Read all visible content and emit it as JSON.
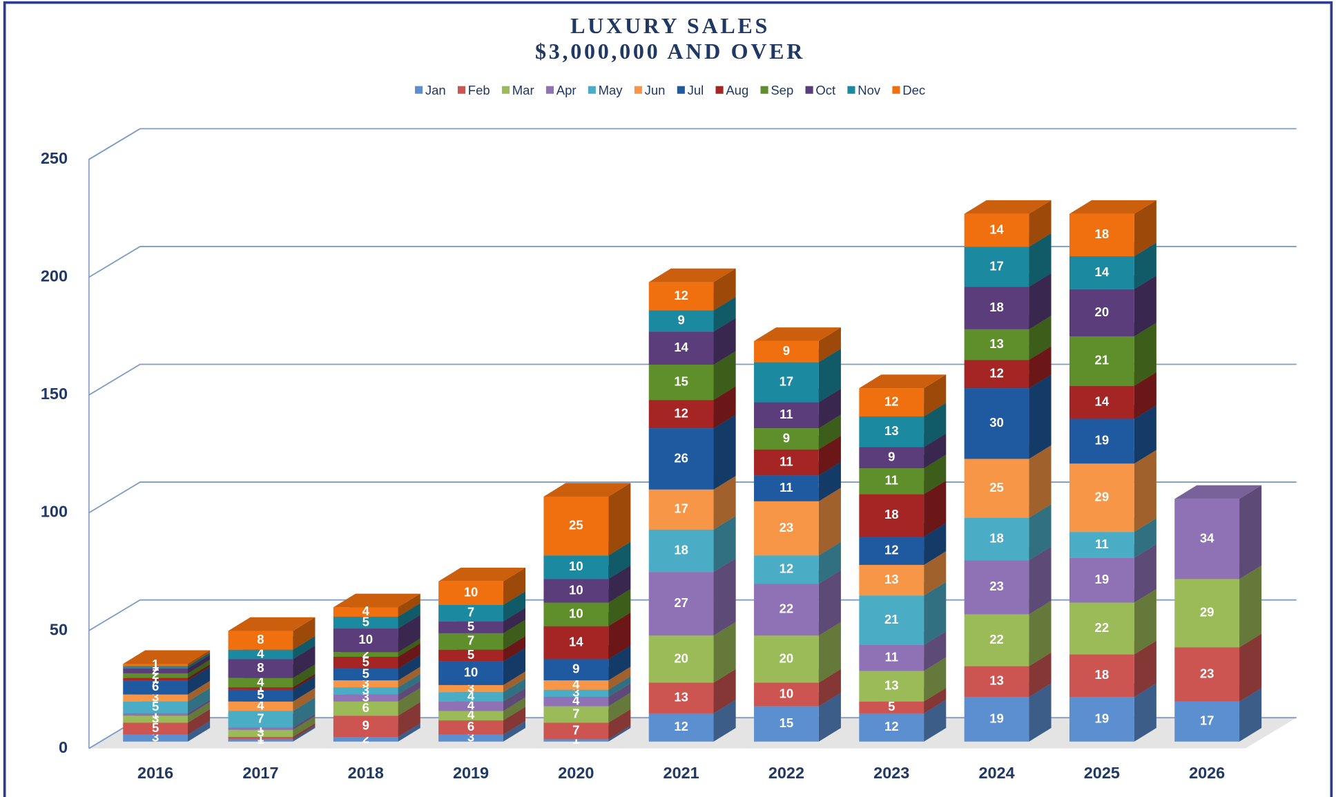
{
  "chart_data": {
    "type": "bar",
    "stacked": true,
    "title": "LUXURY SALES",
    "subtitle": "$3,000,000 AND OVER",
    "categories": [
      "2016",
      "2017",
      "2018",
      "2019",
      "2020",
      "2021",
      "2022",
      "2023",
      "2024",
      "2025",
      "2026"
    ],
    "ylim": [
      0,
      250
    ],
    "yticks": [
      0,
      50,
      100,
      150,
      200,
      250
    ],
    "grid": true,
    "legend": "top",
    "series": [
      {
        "name": "Jan",
        "color": "#5b8fd0",
        "values": [
          3,
          1,
          2,
          3,
          1,
          12,
          15,
          12,
          19,
          19,
          17
        ]
      },
      {
        "name": "Feb",
        "color": "#cc5552",
        "values": [
          5,
          1,
          9,
          6,
          7,
          13,
          10,
          5,
          13,
          18,
          23
        ]
      },
      {
        "name": "Mar",
        "color": "#9bbb59",
        "values": [
          3,
          3,
          6,
          4,
          7,
          20,
          20,
          13,
          22,
          22,
          29
        ]
      },
      {
        "name": "Apr",
        "color": "#8f72b5",
        "values": [
          1,
          1,
          3,
          4,
          4,
          27,
          22,
          11,
          23,
          19,
          34
        ]
      },
      {
        "name": "May",
        "color": "#4bacc6",
        "values": [
          5,
          7,
          3,
          4,
          3,
          18,
          12,
          21,
          18,
          11,
          null
        ]
      },
      {
        "name": "Jun",
        "color": "#f79646",
        "values": [
          3,
          4,
          3,
          3,
          4,
          17,
          23,
          13,
          25,
          29,
          null
        ]
      },
      {
        "name": "Jul",
        "color": "#1f5aa0",
        "values": [
          6,
          5,
          5,
          10,
          9,
          26,
          11,
          12,
          30,
          19,
          null
        ]
      },
      {
        "name": "Aug",
        "color": "#a52424",
        "values": [
          1,
          1,
          5,
          5,
          14,
          12,
          11,
          18,
          12,
          14,
          null
        ]
      },
      {
        "name": "Sep",
        "color": "#5e8f2a",
        "values": [
          2,
          4,
          2,
          7,
          10,
          15,
          9,
          11,
          13,
          21,
          null
        ]
      },
      {
        "name": "Oct",
        "color": "#5a3d7a",
        "values": [
          2,
          8,
          10,
          5,
          10,
          14,
          11,
          9,
          18,
          20,
          null
        ]
      },
      {
        "name": "Nov",
        "color": "#1b8aa0",
        "values": [
          1,
          4,
          5,
          7,
          10,
          9,
          17,
          13,
          17,
          14,
          null
        ]
      },
      {
        "name": "Dec",
        "color": "#f07010",
        "values": [
          1,
          8,
          4,
          10,
          25,
          12,
          9,
          12,
          14,
          18,
          null
        ]
      }
    ]
  }
}
